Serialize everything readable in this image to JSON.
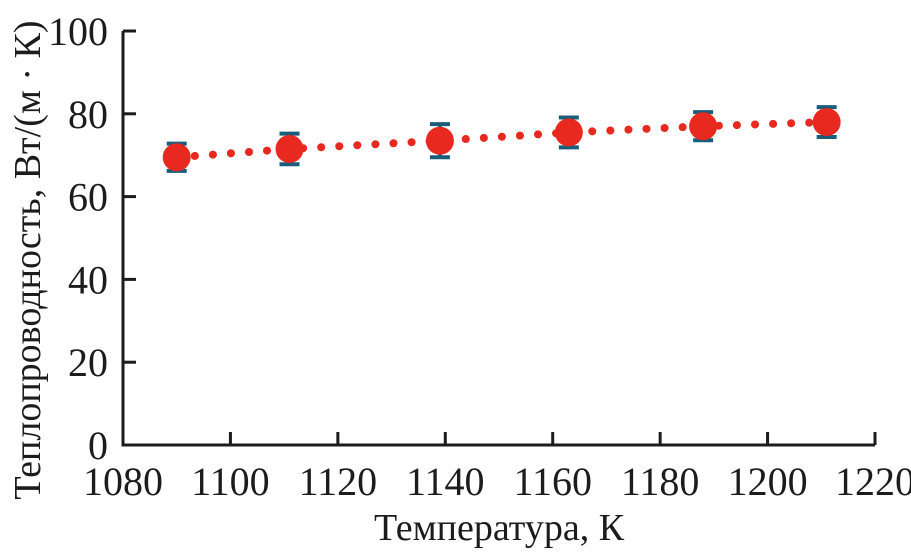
{
  "chart_data": {
    "type": "scatter",
    "xlabel": "Температура, К",
    "ylabel": "Теплопроводность, Вт/(м · К)",
    "x": [
      1090,
      1111,
      1139,
      1163,
      1188,
      1211
    ],
    "y": [
      69.5,
      71.5,
      73.5,
      75.5,
      77,
      78
    ],
    "yerr": [
      3.3,
      3.7,
      4.0,
      3.6,
      3.4,
      3.6
    ],
    "xlim": [
      1080,
      1220
    ],
    "ylim": [
      0,
      100
    ],
    "xticks": [
      1080,
      1100,
      1120,
      1140,
      1160,
      1180,
      1200,
      1220
    ],
    "yticks": [
      0,
      20,
      40,
      60,
      80,
      100
    ],
    "grid": false,
    "legend": false,
    "line_style": "dotted",
    "marker": "circle",
    "colors": {
      "series": "#e8291f",
      "errorbar": "#1a5d7b",
      "axis": "#1c1c1c",
      "background": "#ffffff"
    }
  }
}
